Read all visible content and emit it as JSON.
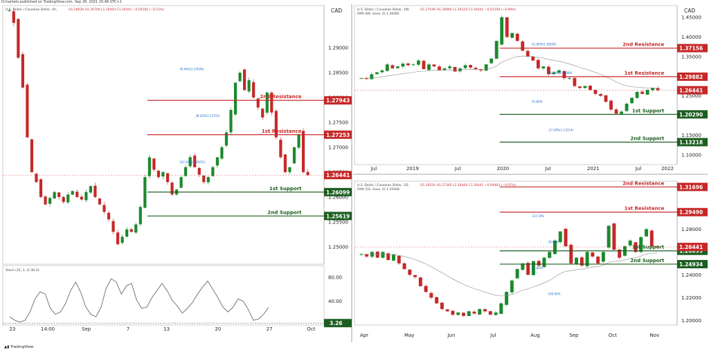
{
  "header": "ICmarkets published on TradingView.com, Sep 26, 2021 15:48 UTC+1",
  "footer_logo": "TradingView",
  "colors": {
    "bull": "#1b8a2d",
    "bear": "#c62828",
    "res": "#c62828",
    "sup": "#1b5e20",
    "stoch": "#555555"
  },
  "chart_data": [
    {
      "id": "h4",
      "type": "candlestick",
      "title": "U.S. Dollar / Canadian Dollar, 4h,",
      "ohlc": "O1.26626 H1.26709 L1.26404 C1.26441 −0.00185 (−0.15%)",
      "currency": "CAD",
      "y_ticks": [
        "1.29000",
        "1.28500",
        "1.28000",
        "1.27500",
        "1.27000",
        "1.26500",
        "1.26000",
        "1.25500",
        "1.25000"
      ],
      "ylim": [
        1.2465,
        1.2985
      ],
      "x_ticks": [
        "23",
        "14:00",
        "Sep",
        "7",
        "13",
        "20",
        "27",
        "Oct"
      ],
      "path": [
        1.2975,
        1.295,
        1.288,
        1.282,
        1.272,
        1.265,
        1.263,
        1.26,
        1.2585,
        1.2598,
        1.261,
        1.26,
        1.259,
        1.2605,
        1.2612,
        1.26,
        1.2595,
        1.261,
        1.2622,
        1.26,
        1.2585,
        1.257,
        1.2555,
        1.253,
        1.2505,
        1.252,
        1.2535,
        1.253,
        1.2545,
        1.258,
        1.264,
        1.268,
        1.2655,
        1.264,
        1.265,
        1.263,
        1.2605,
        1.2615,
        1.264,
        1.266,
        1.268,
        1.266,
        1.2645,
        1.263,
        1.264,
        1.266,
        1.268,
        1.27,
        1.273,
        1.2775,
        1.283,
        1.285,
        1.2815,
        1.2835,
        1.28,
        1.278,
        1.276,
        1.281,
        1.277,
        1.272,
        1.268,
        1.265,
        1.266,
        1.27,
        1.2725,
        1.265,
        1.2644
      ],
      "levels": [
        {
          "label": "2nd Resistance",
          "value": "1.27943",
          "kind": "res"
        },
        {
          "label": "1st Resistance",
          "value": "1.27253",
          "kind": "res"
        },
        {
          "label": "1st Support",
          "value": "1.26099",
          "kind": "sup"
        },
        {
          "label": "2nd Support",
          "value": "1.25619",
          "kind": "sup"
        }
      ],
      "current": "1.26441",
      "fib_labels": [
        "76.40%(1.27928)",
        "38.20%(1.27155)",
        "127.20%(1.25671)"
      ],
      "stoch": {
        "title": "Stoch (10, 3, 3)  38.31",
        "y_ticks": [
          "80.00",
          "40.00"
        ],
        "current": "3.26",
        "values": [
          14,
          8,
          5,
          8,
          22,
          44,
          56,
          52,
          28,
          18,
          22,
          36,
          58,
          72,
          55,
          30,
          18,
          14,
          30,
          62,
          78,
          72,
          52,
          66,
          70,
          42,
          28,
          30,
          46,
          58,
          70,
          58,
          42,
          32,
          20,
          28,
          38,
          52,
          64,
          74,
          60,
          46,
          30,
          22,
          30,
          44,
          40,
          26,
          8,
          10,
          18,
          30
        ]
      }
    },
    {
      "id": "weekly",
      "type": "candlestick",
      "title": "U.S. Dollar / Canadian Dollar, 1W,",
      "ema": "EMA (89, close, 0)  1.28385",
      "ohlc": "O1.27546 H1.28964 L1.26324 C1.26441 −0.01258 (−0.99%)",
      "currency": "CAD",
      "y_ticks": [
        "1.45000",
        "1.40000",
        "1.35000",
        "1.30000",
        "1.25000",
        "1.20000",
        "1.15000",
        "1.10000"
      ],
      "ylim": [
        1.075,
        1.48
      ],
      "x_ticks": [
        "Jul",
        "2019",
        "Jul",
        "2020",
        "Jul",
        "2021",
        "Jul",
        "2022"
      ],
      "path": [
        1.295,
        1.293,
        1.305,
        1.31,
        1.315,
        1.33,
        1.32,
        1.325,
        1.332,
        1.328,
        1.33,
        1.34,
        1.318,
        1.33,
        1.325,
        1.315,
        1.32,
        1.325,
        1.312,
        1.32,
        1.328,
        1.322,
        1.318,
        1.315,
        1.33,
        1.345,
        1.39,
        1.45,
        1.4,
        1.41,
        1.39,
        1.365,
        1.35,
        1.34,
        1.32,
        1.325,
        1.305,
        1.31,
        1.315,
        1.295,
        1.295,
        1.275,
        1.27,
        1.275,
        1.265,
        1.255,
        1.25,
        1.235,
        1.215,
        1.205,
        1.21,
        1.23,
        1.245,
        1.26,
        1.255,
        1.265,
        1.27,
        1.2644
      ],
      "levels": [
        {
          "label": "2nd Resistance",
          "value": "1.37156",
          "kind": "res"
        },
        {
          "label": "1st Resistance",
          "value": "1.29882",
          "kind": "res"
        },
        {
          "label": "1st Support",
          "value": "1.20290",
          "kind": "sup"
        },
        {
          "label": "2nd Support",
          "value": "1.13218",
          "kind": "sup"
        }
      ],
      "current": "1.26441",
      "fib_labels": [
        "61.80%(1.36559)",
        "38.20%(1.30069)",
        "61.80%",
        "-27.20%(1.13114)"
      ]
    },
    {
      "id": "daily",
      "type": "candlestick",
      "title": "U.S. Dollar / Canadian Dollar, 1D,",
      "ema": "EMA (55, close, 0)  1.25948",
      "ohlc": "O1.26534 H1.27305 L1.26404 C1.26441 −0.00093 (−0.07%)",
      "currency": "CAD",
      "y_ticks": [
        "1.28000",
        "1.26000",
        "1.24000",
        "1.22000",
        "1.20000"
      ],
      "ylim": [
        1.196,
        1.322
      ],
      "x_ticks": [
        "Apr",
        "May",
        "Jun",
        "Jul",
        "Aug",
        "Sep",
        "Oct",
        "Nov"
      ],
      "path": [
        1.258,
        1.256,
        1.26,
        1.255,
        1.26,
        1.253,
        1.258,
        1.25,
        1.245,
        1.24,
        1.238,
        1.23,
        1.225,
        1.22,
        1.215,
        1.21,
        1.208,
        1.205,
        1.207,
        1.204,
        1.208,
        1.206,
        1.21,
        1.208,
        1.205,
        1.207,
        1.215,
        1.225,
        1.235,
        1.245,
        1.25,
        1.24,
        1.252,
        1.248,
        1.255,
        1.26,
        1.27,
        1.278,
        1.265,
        1.25,
        1.255,
        1.248,
        1.26,
        1.256,
        1.25,
        1.26,
        1.283,
        1.262,
        1.255,
        1.265,
        1.27,
        1.26,
        1.273,
        1.28,
        1.265,
        1.2644
      ],
      "levels": [
        {
          "label": "2nd Resistance",
          "value": "1.31696",
          "kind": "res"
        },
        {
          "label": "1st Resistance",
          "value": "1.29490",
          "kind": "res"
        },
        {
          "label": "1st Support",
          "value": "1.26099",
          "kind": "sup"
        },
        {
          "label": "2nd Support",
          "value": "1.24934",
          "kind": "sup"
        }
      ],
      "current": "1.26441",
      "fib_labels": [
        "127.20%",
        "78.60%",
        "61.80%",
        "100.00%"
      ]
    }
  ]
}
